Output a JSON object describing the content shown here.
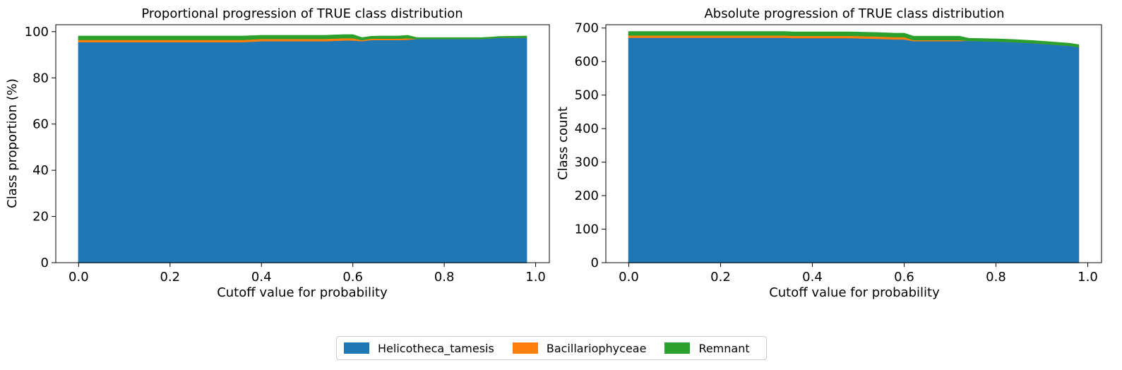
{
  "chart_data": [
    {
      "type": "area",
      "title": "Proportional progression of TRUE class distribution",
      "xlabel": "Cutoff value for probability",
      "ylabel": "Class proportion (%)",
      "xlim": [
        -0.05,
        1.03
      ],
      "ylim": [
        0,
        103
      ],
      "xticks": [
        "0.0",
        "0.2",
        "0.4",
        "0.6",
        "0.8",
        "1.0"
      ],
      "yticks": [
        "0",
        "20",
        "40",
        "60",
        "80",
        "100"
      ],
      "stacked": true,
      "x": [
        0.0,
        0.36,
        0.4,
        0.54,
        0.58,
        0.6,
        0.62,
        0.64,
        0.66,
        0.7,
        0.72,
        0.74,
        0.88,
        0.9,
        0.92,
        0.98
      ],
      "series": [
        {
          "name": "Helicotheca_tamesis",
          "values": [
            95.6,
            95.6,
            96.0,
            96.0,
            96.3,
            96.3,
            96.0,
            96.5,
            96.5,
            96.5,
            96.6,
            97.0,
            97.0,
            97.2,
            97.5,
            97.5
          ]
        },
        {
          "name": "Bacillariophyceae",
          "values": [
            1.0,
            1.0,
            1.0,
            1.0,
            1.0,
            1.0,
            0.5,
            0.6,
            0.6,
            0.6,
            0.7,
            0.0,
            0.0,
            0.0,
            0.0,
            0.0
          ]
        },
        {
          "name": "Remnant",
          "values": [
            1.4,
            1.4,
            1.3,
            1.3,
            1.3,
            1.3,
            0.8,
            0.8,
            0.9,
            0.9,
            1.0,
            0.3,
            0.3,
            0.3,
            0.3,
            0.5
          ]
        }
      ]
    },
    {
      "type": "area",
      "title": "Absolute progression of TRUE class distribution",
      "xlabel": "Cutoff value for probability",
      "ylabel": "Class count",
      "xlim": [
        -0.05,
        1.03
      ],
      "ylim": [
        0,
        710
      ],
      "xticks": [
        "0.0",
        "0.2",
        "0.4",
        "0.6",
        "0.8",
        "1.0"
      ],
      "yticks": [
        "0",
        "100",
        "200",
        "300",
        "400",
        "500",
        "600",
        "700"
      ],
      "stacked": true,
      "x": [
        0.0,
        0.34,
        0.36,
        0.48,
        0.54,
        0.58,
        0.6,
        0.62,
        0.64,
        0.72,
        0.74,
        0.8,
        0.84,
        0.88,
        0.92,
        0.96,
        0.98
      ],
      "series": [
        {
          "name": "Helicotheca_tamesis",
          "values": [
            672,
            672,
            671,
            671,
            669,
            667,
            667,
            662,
            662,
            662,
            663,
            661,
            659,
            656,
            652,
            648,
            644
          ]
        },
        {
          "name": "Bacillariophyceae",
          "values": [
            7,
            7,
            7,
            7,
            7,
            7,
            7,
            3,
            3,
            3,
            0,
            0,
            0,
            0,
            0,
            0,
            0
          ]
        },
        {
          "name": "Remnant",
          "values": [
            10,
            10,
            10,
            10,
            10,
            10,
            10,
            10,
            10,
            10,
            6,
            6,
            6,
            6,
            6,
            6,
            6
          ]
        }
      ]
    }
  ],
  "legend": {
    "items": [
      {
        "label": "Helicotheca_tamesis",
        "color": "#1f77b4"
      },
      {
        "label": "Bacillariophyceae",
        "color": "#ff7f0e"
      },
      {
        "label": "Remnant",
        "color": "#2ca02c"
      }
    ]
  }
}
